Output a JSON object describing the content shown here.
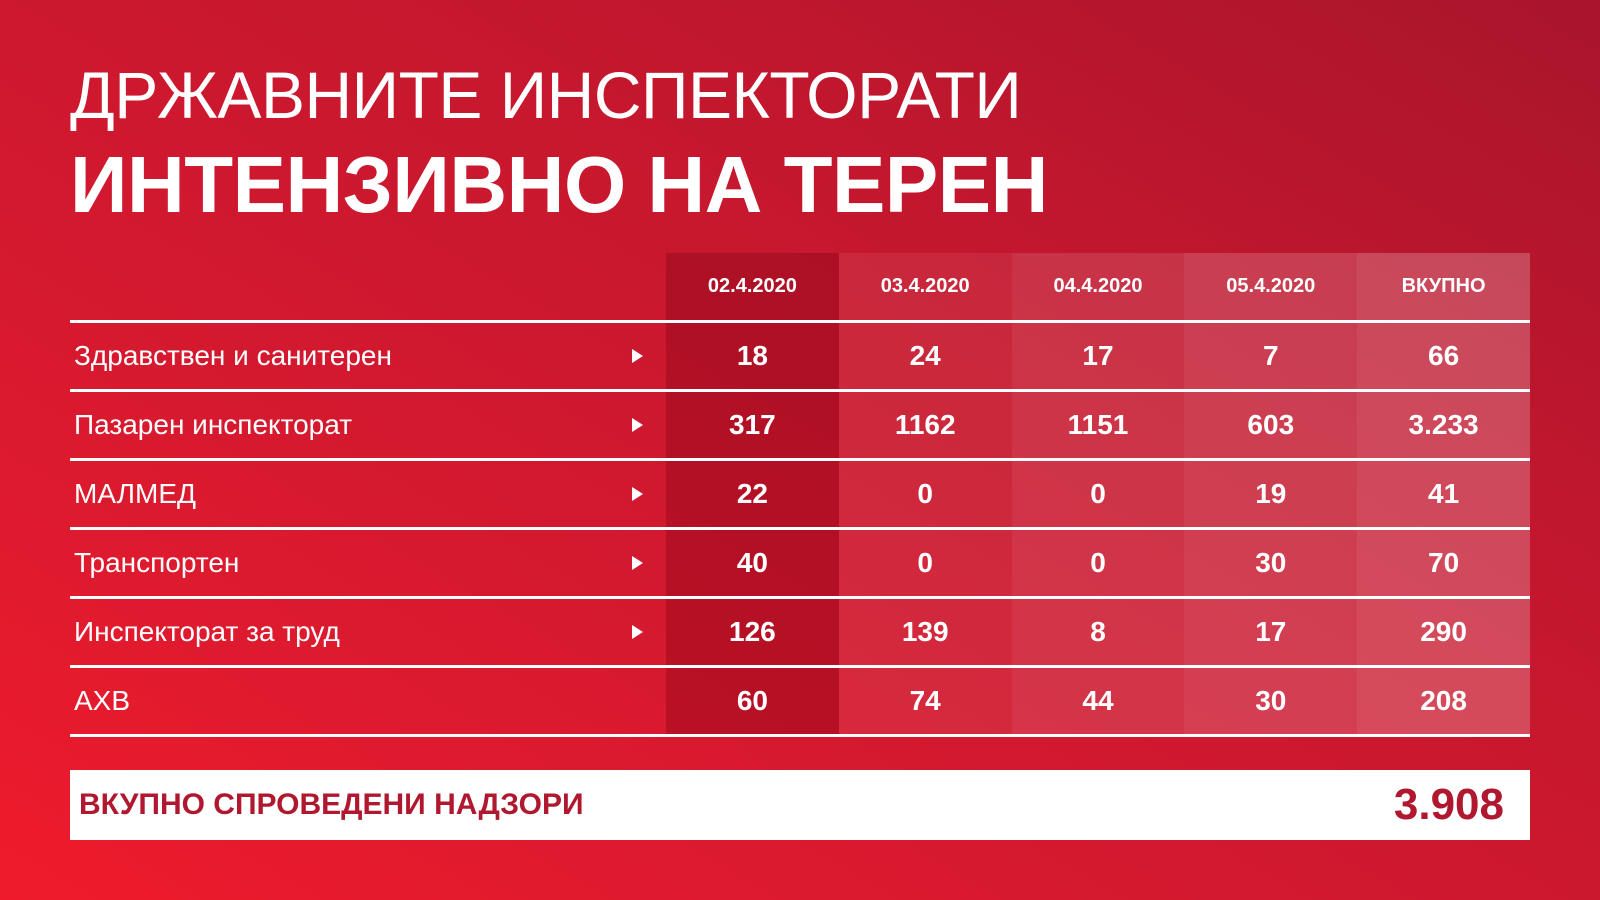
{
  "title": {
    "line1": "ДРЖАВНИТЕ ИНСПЕКТОРАТИ",
    "line2": "ИНТЕНЗИВНО НА ТЕРЕН"
  },
  "table": {
    "columns": [
      "02.4.2020",
      "03.4.2020",
      "04.4.2020",
      "05.4.2020",
      "ВКУПНО"
    ],
    "rows": [
      {
        "label": "Здравствен и санитерен",
        "arrow": true,
        "values": [
          "18",
          "24",
          "17",
          "7",
          "66"
        ]
      },
      {
        "label": "Пазарен инспекторат",
        "arrow": true,
        "values": [
          "317",
          "1162",
          "1151",
          "603",
          "3.233"
        ]
      },
      {
        "label": "МАЛМЕД",
        "arrow": true,
        "values": [
          "22",
          "0",
          "0",
          "19",
          "41"
        ]
      },
      {
        "label": "Транспортен",
        "arrow": true,
        "values": [
          "40",
          "0",
          "0",
          "30",
          "70"
        ]
      },
      {
        "label": "Инспекторат за труд",
        "arrow": true,
        "values": [
          "126",
          "139",
          "8",
          "17",
          "290"
        ]
      },
      {
        "label": "АХВ",
        "arrow": false,
        "values": [
          "60",
          "74",
          "44",
          "30",
          "208"
        ]
      }
    ]
  },
  "total": {
    "label": "ВКУПНО СПРОВЕДЕНИ НАДЗОРИ",
    "value": "3.908"
  },
  "colors": {
    "background_light": "#ef1b2c",
    "background_dark": "#a9152c",
    "accent_text": "#b0182f",
    "text": "#ffffff"
  }
}
